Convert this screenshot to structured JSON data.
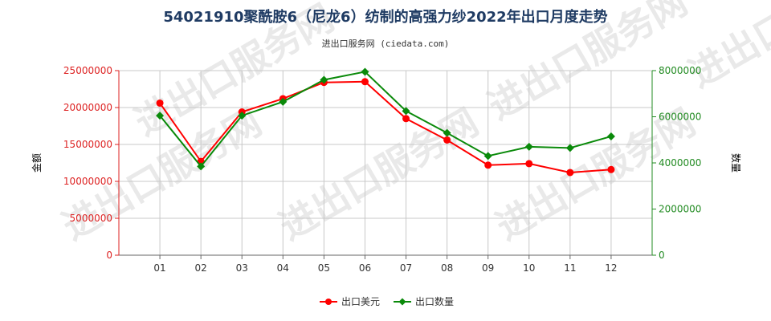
{
  "chart_data": {
    "type": "line",
    "title": "54021910聚酰胺6（尼龙6）纺制的高强力纱2022年出口月度走势",
    "subtitle": "进出口服务网 (ciedata.com)",
    "watermark": "进出口服务网",
    "categories": [
      "01",
      "02",
      "03",
      "04",
      "05",
      "06",
      "07",
      "08",
      "09",
      "10",
      "11",
      "12"
    ],
    "series": [
      {
        "name": "出口美元",
        "axis": "left",
        "color": "#ff0000",
        "marker": "circle",
        "values": [
          20600000,
          12700000,
          19400000,
          21200000,
          23400000,
          23500000,
          18500000,
          15600000,
          12200000,
          12400000,
          11200000,
          11600000
        ]
      },
      {
        "name": "出口数量",
        "axis": "right",
        "color": "#0a8a0a",
        "marker": "diamond",
        "values": [
          6050000,
          3850000,
          6050000,
          6650000,
          7600000,
          7950000,
          6250000,
          5300000,
          4300000,
          4700000,
          4650000,
          5150000
        ]
      }
    ],
    "y_left": {
      "label": "金额",
      "color": "#dd2222",
      "ylim": [
        0,
        25000000
      ],
      "ticks": [
        "0",
        "5000000",
        "10000000",
        "15000000",
        "20000000",
        "25000000"
      ]
    },
    "y_right": {
      "label": "数量",
      "color": "#228b22",
      "ylim": [
        0,
        8000000
      ],
      "ticks": [
        "0",
        "2000000",
        "4000000",
        "6000000",
        "8000000"
      ]
    },
    "grid": true,
    "legend_position": "bottom-center"
  }
}
